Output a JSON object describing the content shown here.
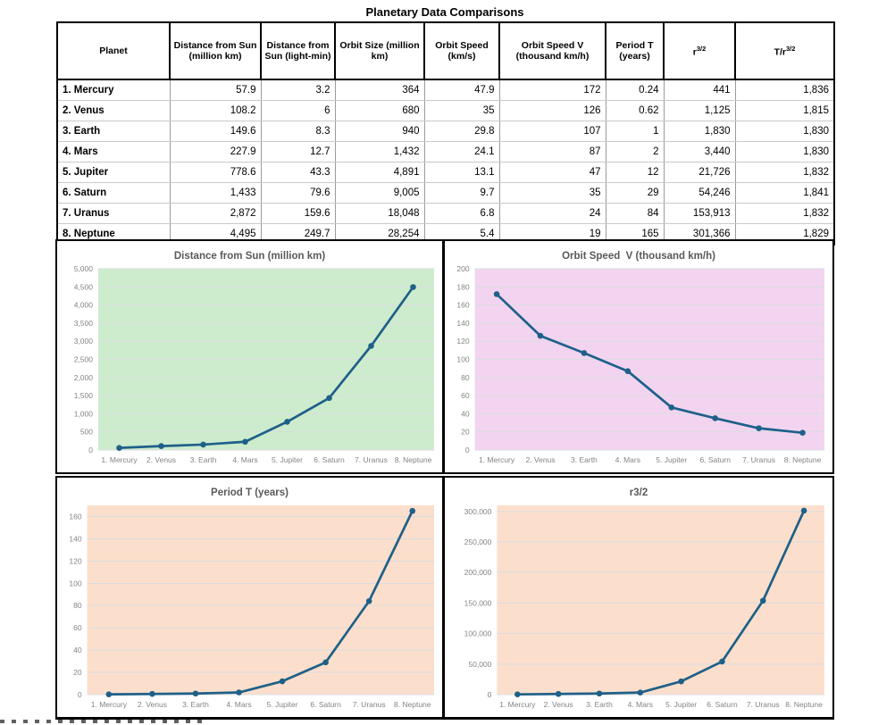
{
  "page_title": "Planetary Data Comparisons",
  "table": {
    "columns": [
      {
        "label": "Planet"
      },
      {
        "label": "Distance from Sun (million km)"
      },
      {
        "label": "Distance from Sun (light-min)"
      },
      {
        "label": "Orbit Size (million km)"
      },
      {
        "label": "Orbit Speed (km/s)"
      },
      {
        "label": "Orbit Speed  V (thousand km/h)"
      },
      {
        "label": "Period T (years)"
      },
      {
        "base": "r",
        "sup": "3/2"
      },
      {
        "base": "T/r",
        "sup": "3/2"
      }
    ],
    "rows": [
      [
        "1. Mercury",
        "57.9",
        "3.2",
        "364",
        "47.9",
        "172",
        "0.24",
        "441",
        "1,836"
      ],
      [
        "2. Venus",
        "108.2",
        "6",
        "680",
        "35",
        "126",
        "0.62",
        "1,125",
        "1,815"
      ],
      [
        "3. Earth",
        "149.6",
        "8.3",
        "940",
        "29.8",
        "107",
        "1",
        "1,830",
        "1,830"
      ],
      [
        "4. Mars",
        "227.9",
        "12.7",
        "1,432",
        "24.1",
        "87",
        "2",
        "3,440",
        "1,830"
      ],
      [
        "5. Jupiter",
        "778.6",
        "43.3",
        "4,891",
        "13.1",
        "47",
        "12",
        "21,726",
        "1,832"
      ],
      [
        "6. Saturn",
        "1,433",
        "79.6",
        "9,005",
        "9.7",
        "35",
        "29",
        "54,246",
        "1,841"
      ],
      [
        "7. Uranus",
        "2,872",
        "159.6",
        "18,048",
        "6.8",
        "24",
        "84",
        "153,913",
        "1,832"
      ],
      [
        "8. Neptune",
        "4,495",
        "249.7",
        "28,254",
        "5.4",
        "19",
        "165",
        "301,366",
        "1,829"
      ]
    ]
  },
  "chart_data": [
    {
      "type": "line",
      "title": "Distance from Sun (million km)",
      "categories": [
        "1. Mercury",
        "2. Venus",
        "3. Earth",
        "4. Mars",
        "5. Jupiter",
        "6. Saturn",
        "7. Uranus",
        "8. Neptune"
      ],
      "values": [
        57.9,
        108.2,
        149.6,
        227.9,
        778.6,
        1433,
        2872,
        4495
      ],
      "xlabel": "",
      "ylabel": "",
      "ylim": [
        0,
        5000
      ],
      "ytick": 500,
      "grid": true,
      "legend": "none",
      "plot_bg": "#cdeccd",
      "line_color": "#1f6088"
    },
    {
      "type": "line",
      "title": "Orbit Speed  V (thousand km/h)",
      "categories": [
        "1. Mercury",
        "2. Venus",
        "3. Earth",
        "4. Mars",
        "5. Jupiter",
        "6. Saturn",
        "7. Uranus",
        "8. Neptune"
      ],
      "values": [
        172,
        126,
        107,
        87,
        47,
        35,
        24,
        19
      ],
      "xlabel": "",
      "ylabel": "",
      "ylim": [
        0,
        200
      ],
      "ytick": 20,
      "grid": true,
      "legend": "none",
      "plot_bg": "#f2d4f1",
      "line_color": "#1f6088"
    },
    {
      "type": "line",
      "title": "Period T (years)",
      "categories": [
        "1. Mercury",
        "2. Venus",
        "3. Earth",
        "4. Mars",
        "5. Jupiter",
        "6. Saturn",
        "7. Uranus",
        "8. Neptune"
      ],
      "values": [
        0.24,
        0.62,
        1,
        2,
        12,
        29,
        84,
        165
      ],
      "xlabel": "",
      "ylabel": "",
      "ylim": [
        0,
        170
      ],
      "ytick": 20,
      "grid": true,
      "legend": "none",
      "plot_bg": "#fbdfcc",
      "line_color": "#1f6088"
    },
    {
      "type": "line",
      "title": "r3/2",
      "categories": [
        "1. Mercury",
        "2. Venus",
        "3. Earth",
        "4. Mars",
        "5. Jupiter",
        "6. Saturn",
        "7. Uranus",
        "8. Neptune"
      ],
      "values": [
        441,
        1125,
        1830,
        3440,
        21726,
        54246,
        153913,
        301366
      ],
      "xlabel": "",
      "ylabel": "",
      "ylim": [
        0,
        310000
      ],
      "ytick": 50000,
      "grid": true,
      "legend": "none",
      "plot_bg": "#fbdfcc",
      "line_color": "#1f6088"
    }
  ],
  "colors": {
    "line": "#1f6088",
    "axis_label_gray": "#848484",
    "chart_title_gray": "#595959",
    "plot_green": "#cdeccd",
    "plot_pink": "#f2d4f1",
    "plot_peach": "#fbdfcc"
  }
}
